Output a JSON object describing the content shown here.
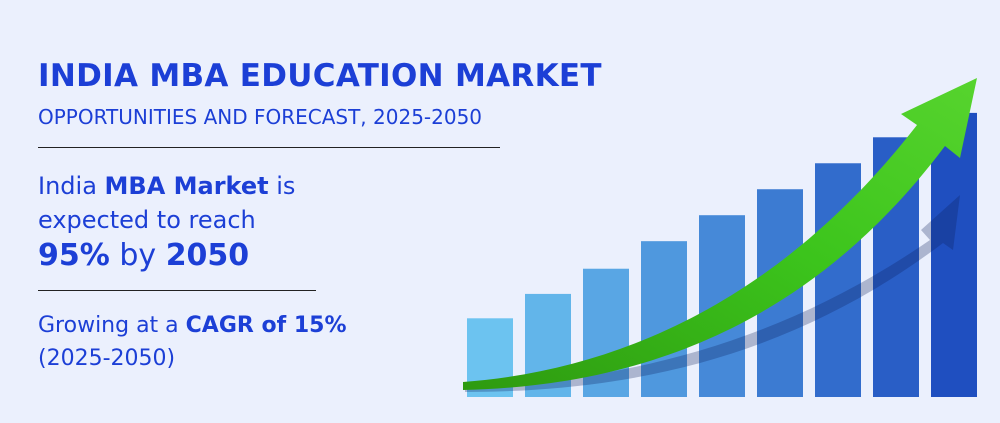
{
  "header": {
    "title": "INDIA MBA EDUCATION MARKET",
    "subtitle": "OPPORTUNITIES AND FORECAST, 2025-2050"
  },
  "highlight": {
    "line1_pre": "India ",
    "line1_bold": "MBA Market",
    "line1_post": " is",
    "line2": "expected to reach",
    "line3_value": "95%",
    "line3_mid": " by ",
    "line3_year": "2050"
  },
  "growth": {
    "pre": "Growing at a ",
    "bold": "CAGR of 15%",
    "period": "(2025-2050)"
  },
  "colors": {
    "title": "#1c3fd6",
    "arrow": "#3cc41c",
    "bar_light": "#6cc3f0",
    "bar_dark": "#1f4fc0",
    "background": "#ebf0fd"
  },
  "chart_data": {
    "type": "bar",
    "title": "",
    "xlabel": "",
    "ylabel": "",
    "categories": [
      "",
      "",
      "",
      "",
      "",
      "",
      "",
      "",
      ""
    ],
    "values": [
      1.0,
      1.31,
      1.63,
      1.98,
      2.31,
      2.64,
      2.97,
      3.3,
      3.61
    ],
    "ylim": [
      0,
      3.8
    ],
    "grid": false,
    "legend": "none",
    "trend": "upward-arrow"
  }
}
